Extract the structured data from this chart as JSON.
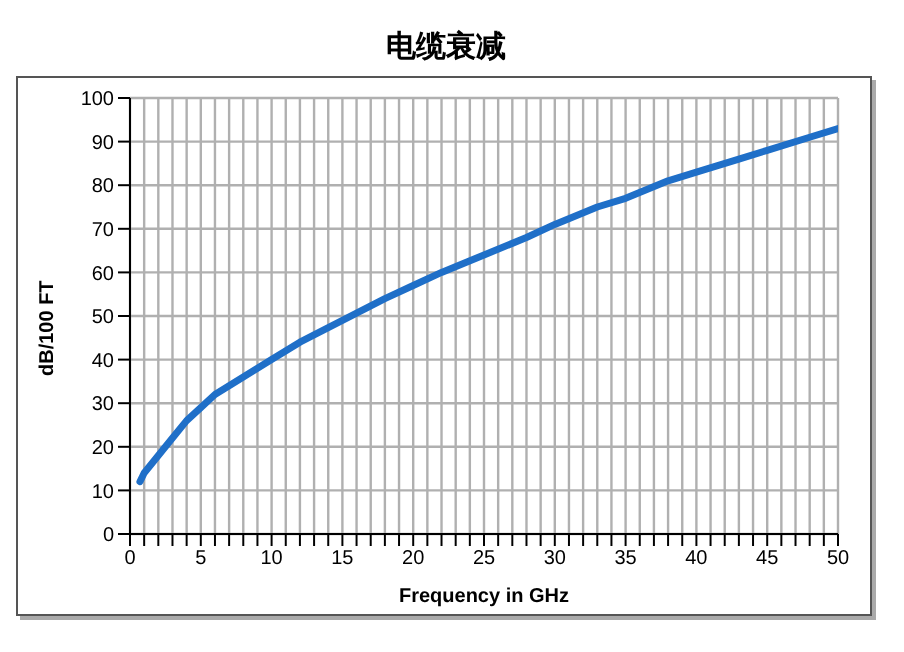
{
  "chart_data": {
    "type": "line",
    "title": "电缆衰减",
    "xlabel": "Frequency in GHz",
    "ylabel": "dB/100 FT",
    "x": [
      0.7,
      1,
      2,
      3,
      4,
      5,
      6,
      8,
      10,
      12,
      15,
      18,
      20,
      22,
      25,
      28,
      30,
      33,
      35,
      38,
      40,
      43,
      45,
      48,
      50
    ],
    "series": [
      {
        "color": "#1f6fc8",
        "values": [
          12,
          14,
          18,
          22,
          26,
          29,
          32,
          36,
          40,
          44,
          49,
          54,
          57,
          60,
          64,
          68,
          71,
          75,
          77,
          81,
          83,
          86,
          88,
          91,
          93
        ]
      }
    ],
    "xlim": [
      0,
      50
    ],
    "xticks": [
      0,
      {
        "value": 1,
        "label": null
      },
      {
        "value": 2,
        "label": null
      },
      {
        "value": 3,
        "label": null
      },
      {
        "value": 4,
        "label": null
      },
      5,
      {
        "value": 6,
        "label": null
      },
      {
        "value": 7,
        "label": null
      },
      {
        "value": 8,
        "label": null
      },
      {
        "value": 9,
        "label": null
      },
      10,
      {
        "value": 11,
        "label": null
      },
      {
        "value": 12,
        "label": null
      },
      {
        "value": 13,
        "label": null
      },
      {
        "value": 14,
        "label": null
      },
      15,
      {
        "value": 16,
        "label": null
      },
      {
        "value": 17,
        "label": null
      },
      {
        "value": 18,
        "label": null
      },
      {
        "value": 19,
        "label": null
      },
      20,
      {
        "value": 21,
        "label": null
      },
      {
        "value": 22,
        "label": null
      },
      {
        "value": 23,
        "label": null
      },
      {
        "value": 24,
        "label": null
      },
      25,
      {
        "value": 26,
        "label": null
      },
      {
        "value": 27,
        "label": null
      },
      {
        "value": 28,
        "label": null
      },
      {
        "value": 29,
        "label": null
      },
      30,
      {
        "value": 31,
        "label": null
      },
      {
        "value": 32,
        "label": null
      },
      {
        "value": 33,
        "label": null
      },
      {
        "value": 34,
        "label": null
      },
      35,
      {
        "value": 36,
        "label": null
      },
      {
        "value": 37,
        "label": null
      },
      {
        "value": 38,
        "label": null
      },
      {
        "value": 39,
        "label": null
      },
      40,
      {
        "value": 41,
        "label": null
      },
      {
        "value": 42,
        "label": null
      },
      {
        "value": 43,
        "label": null
      },
      {
        "value": 44,
        "label": null
      },
      45,
      {
        "value": 46,
        "label": null
      },
      {
        "value": 47,
        "label": null
      },
      {
        "value": 48,
        "label": null
      },
      {
        "value": 49,
        "label": null
      },
      50
    ],
    "ylim": [
      0,
      100
    ],
    "yticks": [
      0,
      10,
      20,
      30,
      40,
      50,
      60,
      70,
      80,
      90,
      100
    ],
    "grid": true,
    "legend": false,
    "marker": "none",
    "line_style": "solid"
  }
}
